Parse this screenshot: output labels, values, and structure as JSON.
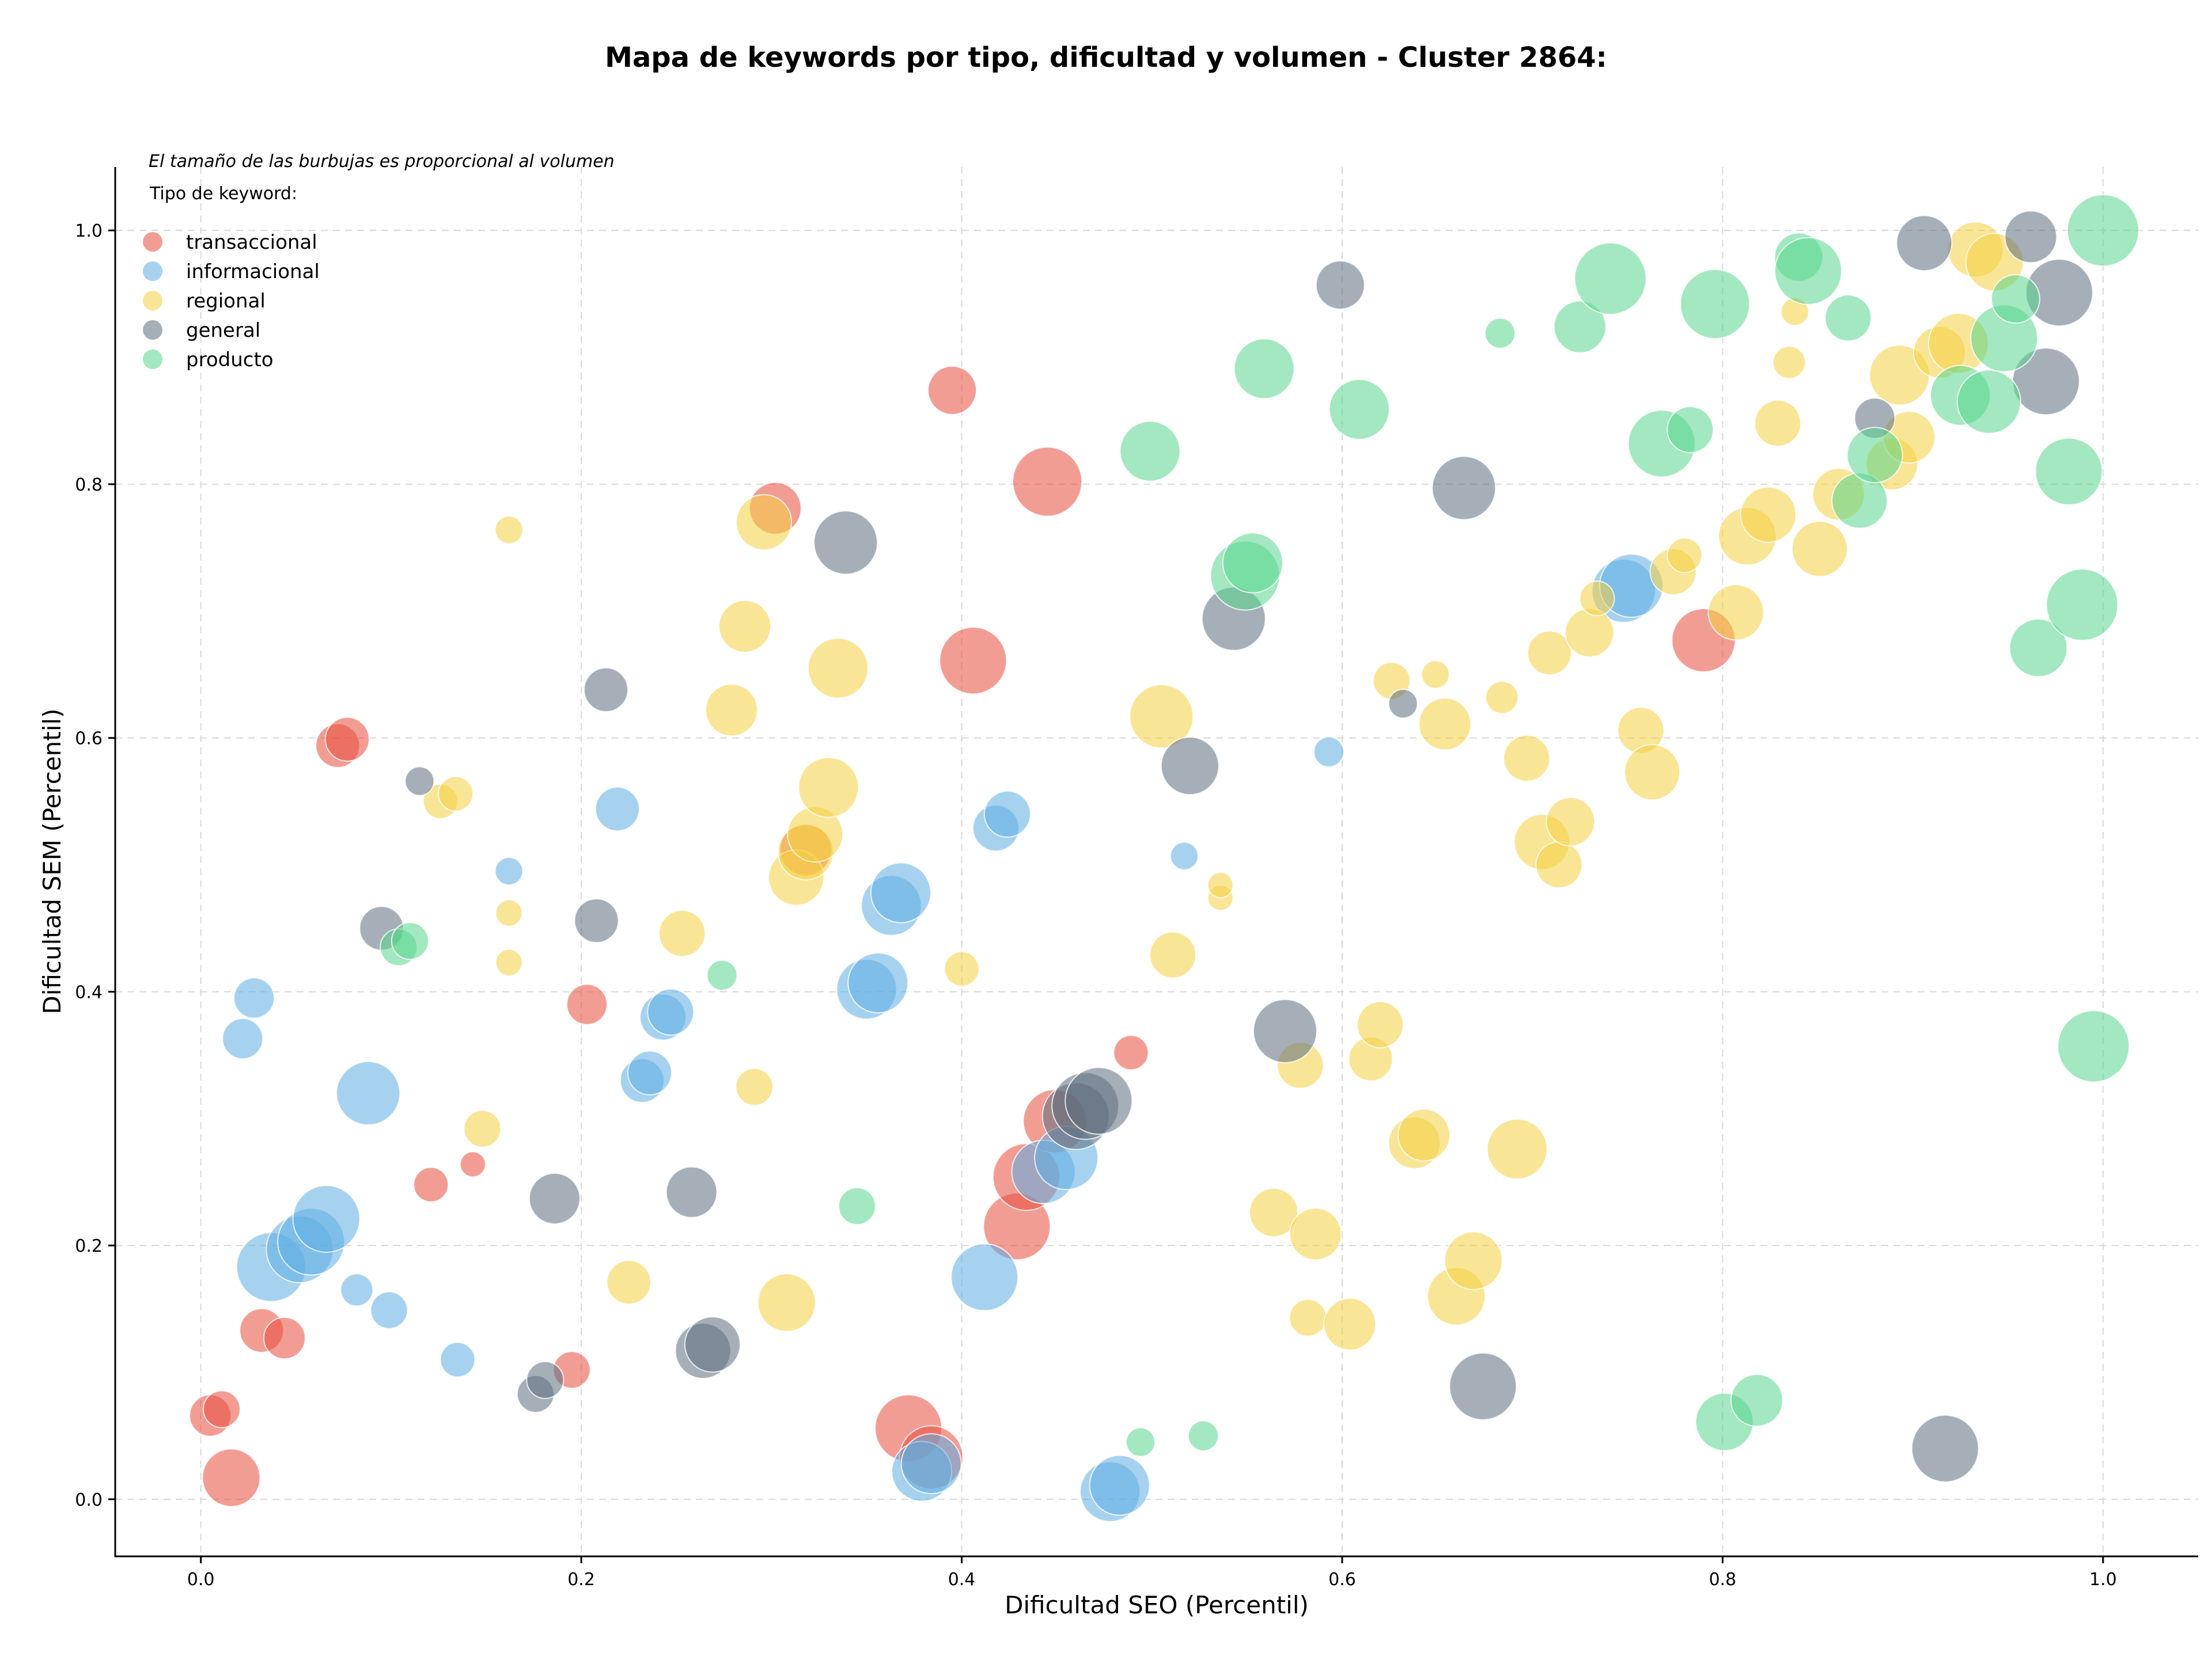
{
  "chart_data": {
    "type": "scatter",
    "title": "Mapa de keywords por tipo, dificultad y volumen - Cluster 2864:",
    "xlabel": "Dificultad SEO (Percentil)",
    "ylabel": "Dificultad SEM (Percentil)",
    "xlim": [
      -0.045,
      1.05
    ],
    "ylim": [
      -0.045,
      1.05
    ],
    "x_ticks": [
      0.0,
      0.2,
      0.4,
      0.6,
      0.8,
      1.0
    ],
    "y_ticks": [
      0.0,
      0.2,
      0.4,
      0.6,
      0.8,
      1.0
    ],
    "x_tick_labels": [
      "0.0",
      "0.2",
      "0.4",
      "0.6",
      "0.8",
      "1.0"
    ],
    "y_tick_labels": [
      "0.0",
      "0.2",
      "0.4",
      "0.6",
      "0.8",
      "1.0"
    ],
    "grid": true,
    "annotation": "El tamaño de las burbujas es proporcional al volumen",
    "legend_title": "Tipo de keyword:",
    "legend_position": "upper-left",
    "series": [
      {
        "name": "transaccional",
        "color": "#e74c3c",
        "points": [
          [
            0.005,
            0.066,
            36
          ],
          [
            0.011,
            0.071,
            32
          ],
          [
            0.016,
            0.017,
            50
          ],
          [
            0.032,
            0.133,
            38
          ],
          [
            0.044,
            0.127,
            36
          ],
          [
            0.072,
            0.594,
            38
          ],
          [
            0.077,
            0.599,
            38
          ],
          [
            0.121,
            0.248,
            30
          ],
          [
            0.143,
            0.264,
            22
          ],
          [
            0.195,
            0.102,
            32
          ],
          [
            0.203,
            0.39,
            35
          ],
          [
            0.302,
            0.781,
            45
          ],
          [
            0.318,
            0.512,
            45
          ],
          [
            0.372,
            0.056,
            58
          ],
          [
            0.384,
            0.033,
            55
          ],
          [
            0.395,
            0.874,
            42
          ],
          [
            0.406,
            0.661,
            58
          ],
          [
            0.429,
            0.215,
            58
          ],
          [
            0.434,
            0.254,
            58
          ],
          [
            0.445,
            0.802,
            60
          ],
          [
            0.449,
            0.298,
            55
          ],
          [
            0.489,
            0.352,
            30
          ],
          [
            0.79,
            0.677,
            55
          ]
        ]
      },
      {
        "name": "informacional",
        "color": "#5dade2",
        "points": [
          [
            0.022,
            0.363,
            35
          ],
          [
            0.028,
            0.395,
            35
          ],
          [
            0.037,
            0.183,
            60
          ],
          [
            0.052,
            0.197,
            58
          ],
          [
            0.058,
            0.203,
            58
          ],
          [
            0.066,
            0.221,
            58
          ],
          [
            0.082,
            0.165,
            28
          ],
          [
            0.088,
            0.32,
            55
          ],
          [
            0.099,
            0.149,
            32
          ],
          [
            0.135,
            0.11,
            30
          ],
          [
            0.162,
            0.495,
            24
          ],
          [
            0.219,
            0.544,
            38
          ],
          [
            0.232,
            0.33,
            38
          ],
          [
            0.236,
            0.336,
            38
          ],
          [
            0.243,
            0.38,
            40
          ],
          [
            0.247,
            0.384,
            40
          ],
          [
            0.35,
            0.402,
            52
          ],
          [
            0.356,
            0.407,
            52
          ],
          [
            0.363,
            0.468,
            52
          ],
          [
            0.368,
            0.478,
            52
          ],
          [
            0.379,
            0.022,
            52
          ],
          [
            0.384,
            0.028,
            52
          ],
          [
            0.412,
            0.175,
            58
          ],
          [
            0.418,
            0.529,
            40
          ],
          [
            0.424,
            0.54,
            40
          ],
          [
            0.443,
            0.258,
            55
          ],
          [
            0.455,
            0.269,
            55
          ],
          [
            0.478,
            0.006,
            52
          ],
          [
            0.483,
            0.011,
            52
          ],
          [
            0.517,
            0.507,
            24
          ],
          [
            0.593,
            0.589,
            26
          ],
          [
            0.748,
            0.716,
            55
          ],
          [
            0.752,
            0.72,
            55
          ]
        ]
      },
      {
        "name": "regional",
        "color": "#f4d03f",
        "points": [
          [
            0.126,
            0.55,
            30
          ],
          [
            0.134,
            0.556,
            30
          ],
          [
            0.148,
            0.292,
            32
          ],
          [
            0.162,
            0.764,
            24
          ],
          [
            0.162,
            0.462,
            23
          ],
          [
            0.162,
            0.423,
            23
          ],
          [
            0.225,
            0.171,
            38
          ],
          [
            0.253,
            0.446,
            40
          ],
          [
            0.279,
            0.622,
            45
          ],
          [
            0.286,
            0.688,
            45
          ],
          [
            0.291,
            0.325,
            32
          ],
          [
            0.296,
            0.77,
            48
          ],
          [
            0.308,
            0.155,
            50
          ],
          [
            0.313,
            0.49,
            48
          ],
          [
            0.318,
            0.51,
            48
          ],
          [
            0.323,
            0.524,
            48
          ],
          [
            0.33,
            0.561,
            52
          ],
          [
            0.335,
            0.655,
            52
          ],
          [
            0.4,
            0.418,
            30
          ],
          [
            0.505,
            0.617,
            55
          ],
          [
            0.511,
            0.429,
            40
          ],
          [
            0.536,
            0.474,
            22
          ],
          [
            0.536,
            0.484,
            22
          ],
          [
            0.564,
            0.226,
            42
          ],
          [
            0.578,
            0.342,
            40
          ],
          [
            0.582,
            0.143,
            32
          ],
          [
            0.586,
            0.209,
            45
          ],
          [
            0.604,
            0.138,
            45
          ],
          [
            0.615,
            0.347,
            38
          ],
          [
            0.62,
            0.374,
            40
          ],
          [
            0.626,
            0.645,
            32
          ],
          [
            0.649,
            0.65,
            24
          ],
          [
            0.638,
            0.281,
            45
          ],
          [
            0.643,
            0.287,
            45
          ],
          [
            0.654,
            0.611,
            45
          ],
          [
            0.66,
            0.16,
            50
          ],
          [
            0.669,
            0.188,
            50
          ],
          [
            0.684,
            0.632,
            28
          ],
          [
            0.692,
            0.276,
            52
          ],
          [
            0.697,
            0.584,
            40
          ],
          [
            0.709,
            0.667,
            38
          ],
          [
            0.705,
            0.518,
            48
          ],
          [
            0.714,
            0.5,
            40
          ],
          [
            0.72,
            0.534,
            42
          ],
          [
            0.73,
            0.683,
            42
          ],
          [
            0.734,
            0.71,
            30
          ],
          [
            0.757,
            0.606,
            40
          ],
          [
            0.763,
            0.573,
            48
          ],
          [
            0.774,
            0.731,
            40
          ],
          [
            0.78,
            0.744,
            30
          ],
          [
            0.807,
            0.699,
            48
          ],
          [
            0.813,
            0.759,
            50
          ],
          [
            0.824,
            0.776,
            48
          ],
          [
            0.829,
            0.848,
            40
          ],
          [
            0.835,
            0.896,
            28
          ],
          [
            0.838,
            0.936,
            24
          ],
          [
            0.851,
            0.749,
            48
          ],
          [
            0.861,
            0.792,
            45
          ],
          [
            0.889,
            0.816,
            45
          ],
          [
            0.893,
            0.886,
            52
          ],
          [
            0.898,
            0.837,
            45
          ],
          [
            0.914,
            0.904,
            45
          ],
          [
            0.924,
            0.911,
            52
          ],
          [
            0.933,
            0.985,
            48
          ],
          [
            0.943,
            0.975,
            50
          ]
        ]
      },
      {
        "name": "general",
        "color": "#5d6d7e",
        "points": [
          [
            0.095,
            0.45,
            38
          ],
          [
            0.115,
            0.566,
            25
          ],
          [
            0.176,
            0.083,
            32
          ],
          [
            0.181,
            0.094,
            32
          ],
          [
            0.186,
            0.237,
            44
          ],
          [
            0.208,
            0.456,
            38
          ],
          [
            0.213,
            0.638,
            38
          ],
          [
            0.258,
            0.242,
            44
          ],
          [
            0.264,
            0.117,
            48
          ],
          [
            0.269,
            0.122,
            48
          ],
          [
            0.339,
            0.754,
            55
          ],
          [
            0.46,
            0.302,
            58
          ],
          [
            0.465,
            0.31,
            58
          ],
          [
            0.472,
            0.314,
            58
          ],
          [
            0.52,
            0.578,
            50
          ],
          [
            0.543,
            0.694,
            55
          ],
          [
            0.57,
            0.369,
            55
          ],
          [
            0.599,
            0.957,
            42
          ],
          [
            0.632,
            0.627,
            25
          ],
          [
            0.664,
            0.797,
            55
          ],
          [
            0.674,
            0.089,
            58
          ],
          [
            0.88,
            0.852,
            35
          ],
          [
            0.906,
            0.99,
            48
          ],
          [
            0.917,
            0.04,
            58
          ],
          [
            0.962,
            0.995,
            45
          ],
          [
            0.97,
            0.881,
            58
          ],
          [
            0.977,
            0.951,
            58
          ]
        ]
      },
      {
        "name": "producto",
        "color": "#58d68d",
        "points": [
          [
            0.104,
            0.435,
            32
          ],
          [
            0.11,
            0.44,
            32
          ],
          [
            0.274,
            0.413,
            26
          ],
          [
            0.345,
            0.231,
            32
          ],
          [
            0.494,
            0.045,
            25
          ],
          [
            0.527,
            0.05,
            26
          ],
          [
            0.499,
            0.826,
            52
          ],
          [
            0.549,
            0.728,
            60
          ],
          [
            0.553,
            0.738,
            52
          ],
          [
            0.559,
            0.891,
            52
          ],
          [
            0.609,
            0.859,
            52
          ],
          [
            0.683,
            0.919,
            26
          ],
          [
            0.725,
            0.924,
            45
          ],
          [
            0.741,
            0.962,
            62
          ],
          [
            0.768,
            0.832,
            58
          ],
          [
            0.783,
            0.843,
            40
          ],
          [
            0.796,
            0.942,
            60
          ],
          [
            0.801,
            0.061,
            50
          ],
          [
            0.818,
            0.078,
            45
          ],
          [
            0.84,
            0.979,
            42
          ],
          [
            0.845,
            0.968,
            58
          ],
          [
            0.866,
            0.931,
            40
          ],
          [
            0.872,
            0.787,
            48
          ],
          [
            0.88,
            0.823,
            48
          ],
          [
            0.925,
            0.87,
            52
          ],
          [
            0.94,
            0.865,
            55
          ],
          [
            0.948,
            0.915,
            58
          ],
          [
            0.954,
            0.946,
            42
          ],
          [
            0.966,
            0.671,
            50
          ],
          [
            0.982,
            0.81,
            58
          ],
          [
            0.989,
            0.705,
            62
          ],
          [
            0.995,
            0.357,
            62
          ],
          [
            1.0,
            1.0,
            62
          ]
        ]
      }
    ]
  }
}
